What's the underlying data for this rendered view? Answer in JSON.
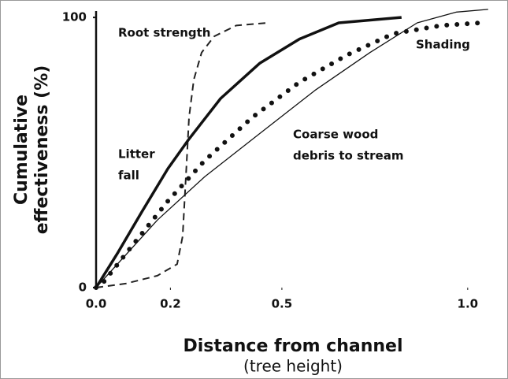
{
  "chart_data": {
    "type": "line",
    "xlabel": [
      "Distance from channel",
      "(tree height)"
    ],
    "ylabel": [
      "Cumulative",
      "effectiveness (%)"
    ],
    "xlim": [
      0,
      1.1
    ],
    "ylim": [
      0,
      105
    ],
    "xticks": [
      {
        "value": 0,
        "label": "0.0"
      },
      0.2,
      0.5,
      {
        "value": 1,
        "label": "1.0"
      }
    ],
    "yticks": [
      0,
      100
    ],
    "series": [
      {
        "name": "Root strength",
        "color": "#222",
        "style": "dashed",
        "x": [
          0,
          0.08,
          0.165,
          0.218,
          0.233,
          0.242,
          0.25,
          0.263,
          0.284,
          0.318,
          0.377,
          0.462
        ],
        "values": [
          0,
          1.5,
          4.4,
          8.7,
          19,
          42,
          63,
          77,
          87,
          93,
          97,
          98
        ]
      },
      {
        "name": "Litter fall",
        "color": "#111",
        "style": "thick",
        "x": [
          0,
          0.059,
          0.123,
          0.193,
          0.25,
          0.335,
          0.44,
          0.547,
          0.653,
          0.822
        ],
        "values": [
          0,
          13,
          28,
          44,
          55,
          70,
          83,
          92,
          98,
          100
        ]
      },
      {
        "name": "Coarse wood debris to stream",
        "color": "#111",
        "style": "thin",
        "x": [
          0,
          0.165,
          0.292,
          0.44,
          0.589,
          0.737,
          0.864,
          0.97,
          1.055
        ],
        "values": [
          0,
          25,
          41,
          57,
          73,
          87,
          98,
          102,
          103
        ]
      },
      {
        "name": "Shading",
        "color": "#111",
        "style": "dotted",
        "x": [
          0,
          0.017,
          0.1,
          0.193,
          0.292,
          0.42,
          0.547,
          0.674,
          0.8,
          0.928,
          1.034
        ],
        "values": [
          0,
          1.5,
          16,
          32,
          47,
          63,
          76,
          86,
          94,
          97,
          98
        ]
      }
    ],
    "annotations": [
      [
        "Root strength"
      ],
      [
        "Litter",
        "fall"
      ],
      [
        "Coarse wood",
        "debris to stream"
      ],
      [
        "Shading"
      ]
    ]
  }
}
